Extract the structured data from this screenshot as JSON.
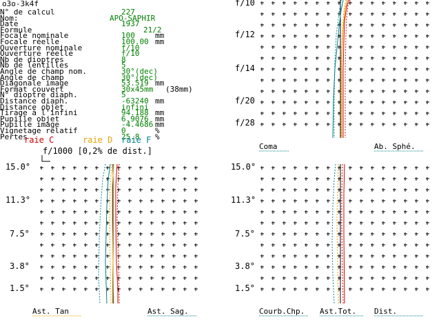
{
  "window_title": "o3o-3k4f",
  "params": [
    {
      "label": "N° de calcul",
      "value": "227",
      "unit": ""
    },
    {
      "label": "Nom:",
      "value": "APO-SAPHIR",
      "unit": ""
    },
    {
      "label": "Date",
      "value": "1937",
      "unit": ""
    },
    {
      "label": "Formule",
      "value": "21/2",
      "unit": ""
    },
    {
      "label": "Focale nominale",
      "value": "100",
      "unit": "mm"
    },
    {
      "label": "Focale réelle",
      "value": "100.00",
      "unit": "mm"
    },
    {
      "label": "Ouverture nominale",
      "value": "f/10",
      "unit": ""
    },
    {
      "label": "Ouverture réelle",
      "value": "f/10",
      "unit": ""
    },
    {
      "label": "Nb de dioptres",
      "value": "8",
      "unit": ""
    },
    {
      "label": "Nb de lentilles",
      "value": "5",
      "unit": ""
    },
    {
      "label": "Angle de champ nom.",
      "value": "30°(dec)",
      "unit": ""
    },
    {
      "label": "Angle de champ",
      "value": "30°(dec)",
      "unit": ""
    },
    {
      "label": "Diagonale image",
      "value": "53.519",
      "unit": "mm"
    },
    {
      "label": "Format couvert",
      "value": "30x45mm",
      "unit": "(38mm)"
    },
    {
      "label": "N° dioptre diaph.",
      "value": "5",
      "unit": ""
    },
    {
      "label": "Distance diaph.",
      "value": "-63240",
      "unit": "mm"
    },
    {
      "label": "Distance objet",
      "value": "infini",
      "unit": ""
    },
    {
      "label": "Tirage à l'infini",
      "value": "94.188",
      "unit": "mm"
    },
    {
      "label": "Pupille objet",
      "value": "6.9076",
      "unit": "mm"
    },
    {
      "label": "Pupille image",
      "value": "-4.4686",
      "unit": "mm"
    },
    {
      "label": "Vignetage relatif",
      "value": "0",
      "unit": "%"
    },
    {
      "label": "Pertes",
      "value": "25.8",
      "unit": "%"
    }
  ],
  "legend": {
    "raie_c": "raie C",
    "raie_d": "raie D",
    "raie_f": "raie F",
    "scale_note": "f/1000 [0,2% de dist.]"
  },
  "colors": {
    "green": "#008000",
    "red": "#d00000",
    "orange": "#e8a000",
    "teal": "#00808a",
    "grid": "#000000"
  },
  "panel_top_right": {
    "labels": [
      "f/10",
      "f/12",
      "f/14",
      "f/20",
      "f/28"
    ],
    "footer_left": "Coma",
    "footer_right": "Ab. Sphé."
  },
  "panel_bottom_left": {
    "labels": [
      "15.0°",
      "11.3°",
      "7.5°",
      "3.8°",
      "1.5°"
    ],
    "footer_left": "Ast. Tan",
    "footer_right": "Ast. Sag."
  },
  "panel_bottom_right": {
    "labels": [
      "15.0°",
      "11.3°",
      "7.5°",
      "3.8°",
      "1.5°"
    ],
    "footer_left": "Courb.Chp.",
    "footer_mid": "Ast.Tot.",
    "footer_right": "Dist."
  }
}
